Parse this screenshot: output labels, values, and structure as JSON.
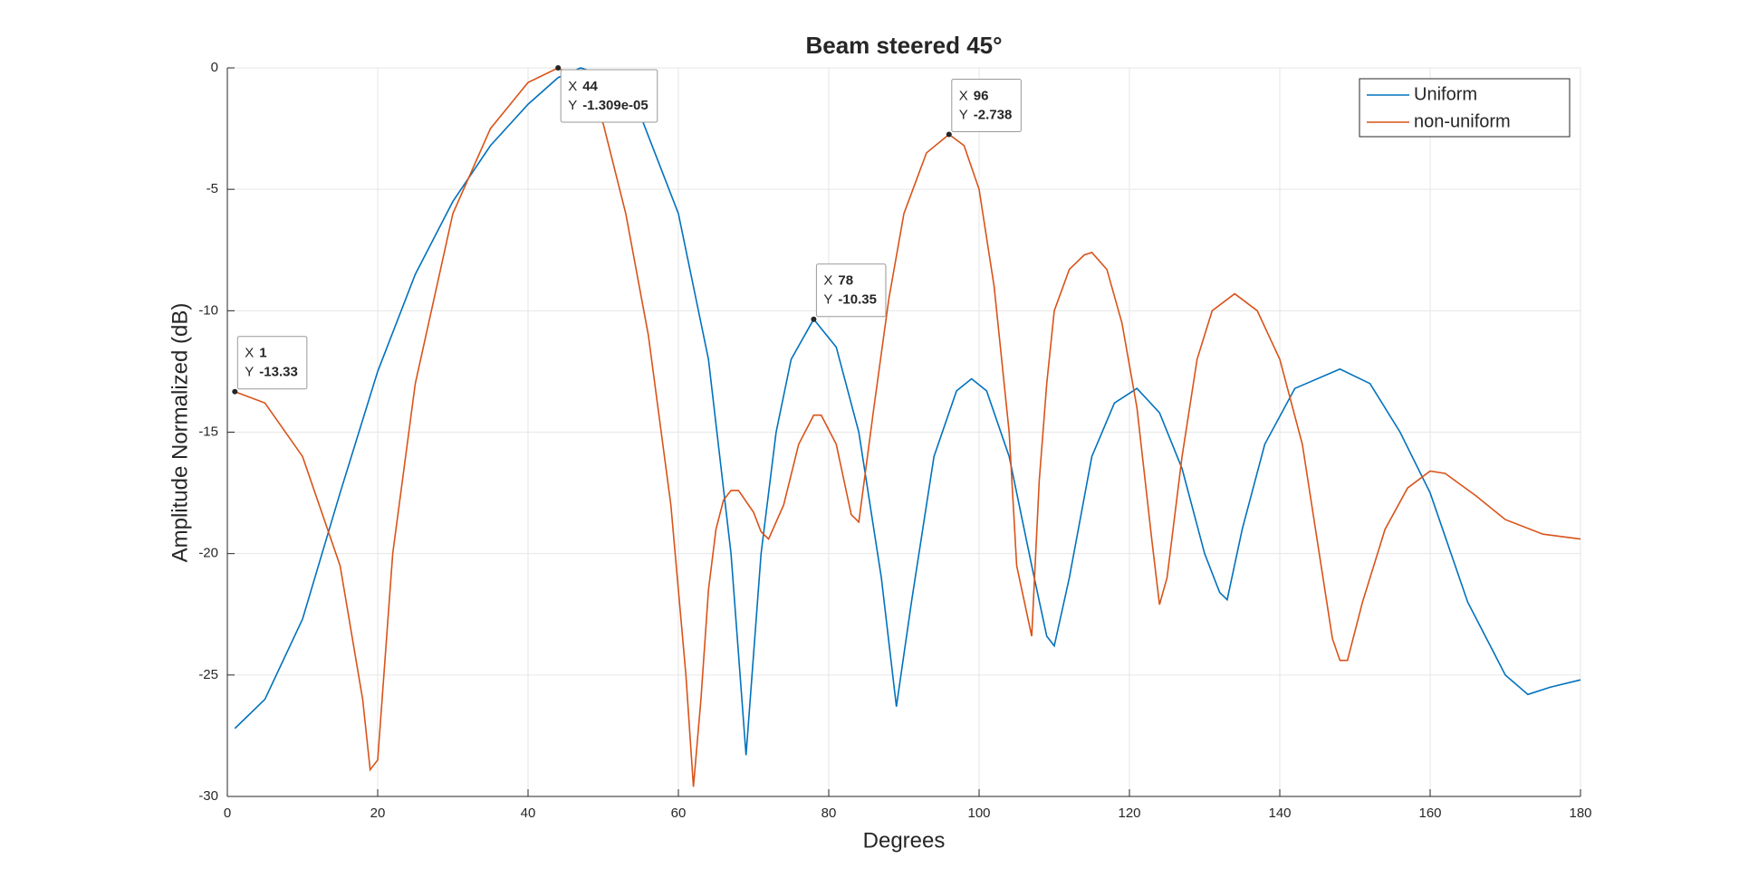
{
  "chart_data": {
    "type": "line",
    "title": "Beam steered 45°",
    "x_label": "Degrees",
    "y_label": "Amplitude Normalized (dB)",
    "xlim": [
      0,
      180
    ],
    "ylim": [
      -30,
      0
    ],
    "xticks": [
      0,
      20,
      40,
      60,
      80,
      100,
      120,
      140,
      160,
      180
    ],
    "yticks": [
      0,
      -5,
      -10,
      -15,
      -20,
      -25,
      -30
    ],
    "grid": true,
    "legend": "top-right",
    "series": [
      {
        "name": "Uniform",
        "color": "#0072BD",
        "x": [
          1,
          5,
          10,
          15,
          20,
          25,
          30,
          35,
          40,
          44,
          47,
          50,
          55,
          60,
          64,
          67,
          69,
          71,
          73,
          75,
          78,
          81,
          84,
          87,
          89,
          91,
          94,
          97,
          99,
          101,
          104,
          107,
          109,
          110,
          112,
          115,
          118,
          121,
          124,
          127,
          130,
          132,
          133,
          135,
          138,
          142,
          148,
          152,
          156,
          160,
          165,
          170,
          173,
          176,
          180
        ],
        "values": [
          -27.2,
          -26,
          -22.7,
          -17.5,
          -12.5,
          -8.5,
          -5.5,
          -3.2,
          -1.5,
          -0.4,
          0,
          -0.3,
          -2,
          -6,
          -12,
          -20,
          -28.3,
          -20,
          -15,
          -12,
          -10.35,
          -11.5,
          -15,
          -21,
          -26.3,
          -22,
          -16,
          -13.3,
          -12.8,
          -13.3,
          -16,
          -20.5,
          -23.4,
          -23.8,
          -21,
          -16,
          -13.8,
          -13.2,
          -14.2,
          -16.5,
          -20,
          -21.6,
          -21.9,
          -19,
          -15.5,
          -13.2,
          -12.4,
          -13,
          -15,
          -17.5,
          -22,
          -25,
          -25.8,
          -25.5,
          -25.2
        ]
      },
      {
        "name": "non-uniform",
        "color": "#D95319",
        "x": [
          1,
          5,
          10,
          15,
          18,
          19,
          20,
          22,
          25,
          30,
          35,
          40,
          44,
          47,
          50,
          53,
          56,
          59,
          61,
          62,
          63,
          64,
          65,
          66,
          67,
          68,
          70,
          71,
          72,
          74,
          76,
          78,
          79,
          81,
          83,
          84,
          86,
          88,
          90,
          93,
          96,
          98,
          100,
          102,
          104,
          105,
          107,
          108,
          109,
          110,
          112,
          114,
          115,
          117,
          119,
          121,
          123,
          124,
          125,
          127,
          129,
          131,
          134,
          137,
          140,
          143,
          145,
          147,
          148,
          149,
          151,
          154,
          157,
          160,
          162,
          166,
          170,
          175,
          180
        ],
        "values": [
          -13.33,
          -13.8,
          -16,
          -20.5,
          -26,
          -28.9,
          -28.5,
          -20,
          -13,
          -6,
          -2.5,
          -0.6,
          -1.309e-05,
          -0.5,
          -2.3,
          -6,
          -11,
          -18,
          -25,
          -29.6,
          -26,
          -21.5,
          -19,
          -17.8,
          -17.4,
          -17.4,
          -18.3,
          -19.1,
          -19.4,
          -18,
          -15.5,
          -14.3,
          -14.3,
          -15.5,
          -18.4,
          -18.7,
          -14,
          -9.5,
          -6,
          -3.5,
          -2.738,
          -3.2,
          -5,
          -9,
          -15,
          -20.5,
          -23.4,
          -17,
          -13,
          -10,
          -8.3,
          -7.7,
          -7.6,
          -8.3,
          -10.5,
          -14,
          -19.5,
          -22.1,
          -21,
          -16,
          -12,
          -10,
          -9.3,
          -10,
          -12,
          -15.5,
          -19.5,
          -23.5,
          -24.4,
          -24.4,
          -22,
          -19,
          -17.3,
          -16.6,
          -16.7,
          -17.6,
          -18.6,
          -19.2,
          -19.4
        ]
      }
    ],
    "datatip_keys": {
      "x": "X",
      "y": "Y"
    },
    "annotations": [
      {
        "x": 1,
        "y": -13.33
      },
      {
        "x": 44,
        "y": -1.309e-05,
        "y_label": "-1.309e-05"
      },
      {
        "x": 78,
        "y": -10.35
      },
      {
        "x": 96,
        "y": -2.738
      }
    ]
  }
}
